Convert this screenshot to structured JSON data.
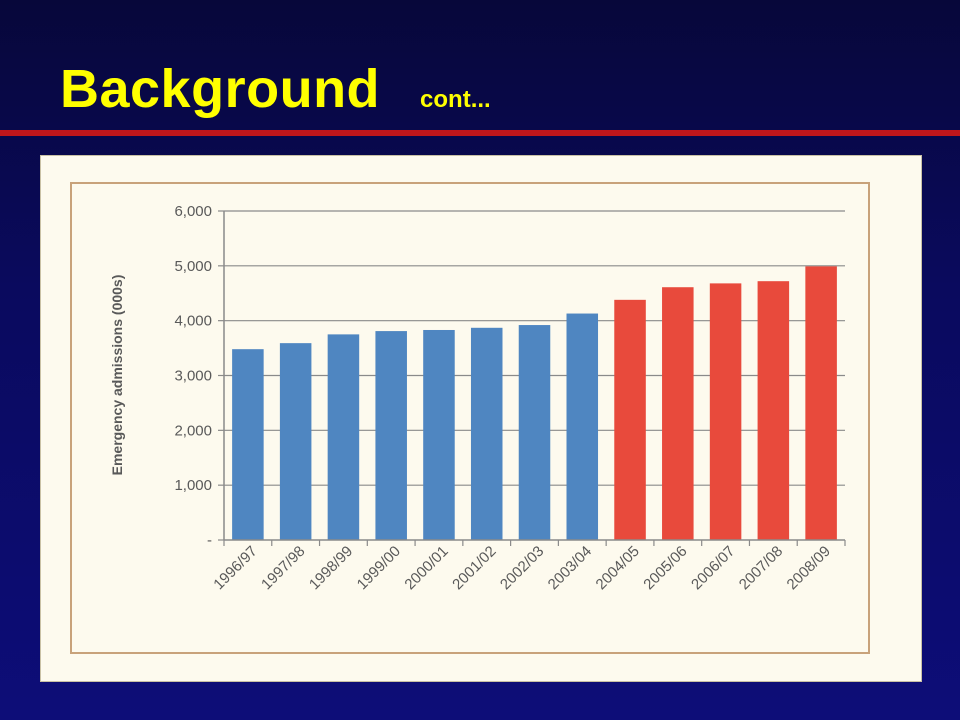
{
  "slide": {
    "title": "Background",
    "subtitle": "cont..."
  },
  "chart_data": {
    "type": "bar",
    "title": "",
    "xlabel": "",
    "ylabel": "Emergency admissions (000s)",
    "ylim": [
      0,
      6000
    ],
    "yticks": [
      {
        "value": 0,
        "label": "-"
      },
      {
        "value": 1000,
        "label": "1,000"
      },
      {
        "value": 2000,
        "label": "2,000"
      },
      {
        "value": 3000,
        "label": "3,000"
      },
      {
        "value": 4000,
        "label": "4,000"
      },
      {
        "value": 5000,
        "label": "5,000"
      },
      {
        "value": 6000,
        "label": "6,000"
      }
    ],
    "grid": true,
    "categories": [
      "1996/97",
      "1997/98",
      "1998/99",
      "1999/00",
      "2000/01",
      "2001/02",
      "2002/03",
      "2003/04",
      "2004/05",
      "2005/06",
      "2006/07",
      "2007/08",
      "2008/09"
    ],
    "values": [
      3480,
      3590,
      3750,
      3810,
      3830,
      3870,
      3920,
      4130,
      4380,
      4610,
      4680,
      4720,
      4990
    ],
    "bar_colors": [
      "#4f86c1",
      "#4f86c1",
      "#4f86c1",
      "#4f86c1",
      "#4f86c1",
      "#4f86c1",
      "#4f86c1",
      "#4f86c1",
      "#e84a3c",
      "#e84a3c",
      "#e84a3c",
      "#e84a3c",
      "#e84a3c"
    ]
  }
}
